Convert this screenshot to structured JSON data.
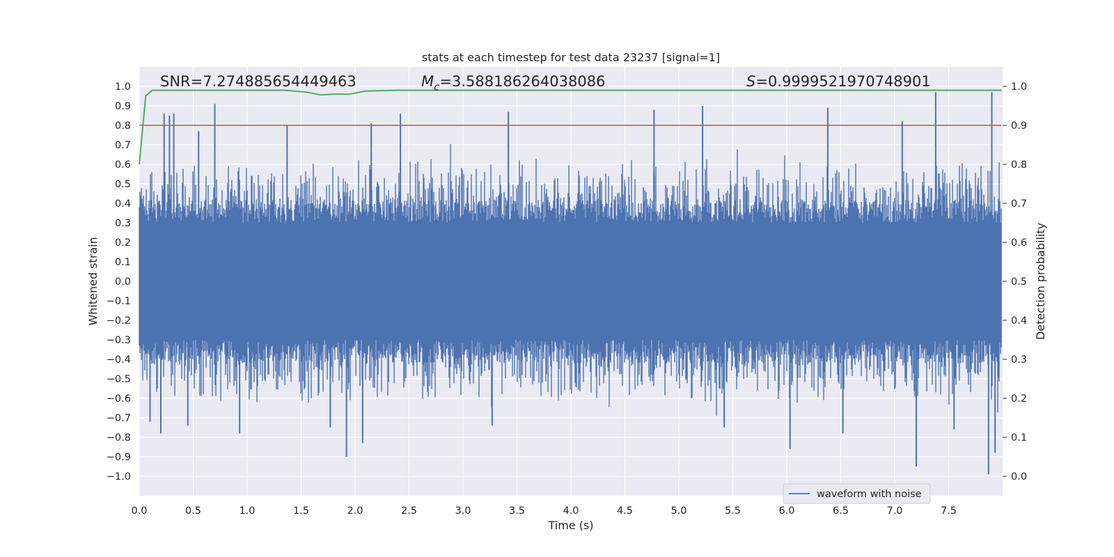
{
  "chart_data": {
    "type": "line",
    "title": "stats at each timestep for test data 23237 [signal=1]",
    "xlabel": "Time (s)",
    "ylabel": "Whitened strain",
    "y2label": "Detection probability",
    "xlim": [
      0.0,
      8.0
    ],
    "ylim": [
      -1.1,
      1.1
    ],
    "y2lim": [
      -0.05,
      1.05
    ],
    "xticks": [
      "0.0",
      "0.5",
      "1.0",
      "1.5",
      "2.0",
      "2.5",
      "3.0",
      "3.5",
      "4.0",
      "4.5",
      "5.0",
      "5.5",
      "6.0",
      "6.5",
      "7.0",
      "7.5"
    ],
    "xtick_values": [
      0.0,
      0.5,
      1.0,
      1.5,
      2.0,
      2.5,
      3.0,
      3.5,
      4.0,
      4.5,
      5.0,
      5.5,
      6.0,
      6.5,
      7.0,
      7.5
    ],
    "yticks": [
      "1.0",
      "0.9",
      "0.8",
      "0.7",
      "0.6",
      "0.5",
      "0.4",
      "0.3",
      "0.2",
      "0.1",
      "0.0",
      "−0.1",
      "−0.2",
      "−0.3",
      "−0.4",
      "−0.5",
      "−0.6",
      "−0.7",
      "−0.8",
      "−0.9",
      "−1.0"
    ],
    "ytick_values": [
      1.0,
      0.9,
      0.8,
      0.7,
      0.6,
      0.5,
      0.4,
      0.3,
      0.2,
      0.1,
      0.0,
      -0.1,
      -0.2,
      -0.3,
      -0.4,
      -0.5,
      -0.6,
      -0.7,
      -0.8,
      -0.9,
      -1.0
    ],
    "y2ticks": [
      "1.0",
      "0.9",
      "0.8",
      "0.7",
      "0.6",
      "0.5",
      "0.4",
      "0.3",
      "0.2",
      "0.1",
      "0.0"
    ],
    "y2tick_values": [
      1.0,
      0.9,
      0.8,
      0.7,
      0.6,
      0.5,
      0.4,
      0.3,
      0.2,
      0.1,
      0.0
    ],
    "annotations": {
      "snr": "SNR=7.274885654449463",
      "mc_symbol": "M",
      "mc_sub": "c",
      "mc_value": "=3.588186264038086",
      "s_symbol": "S",
      "s_value": "=0.9999521970748901"
    },
    "legend": {
      "label": "waveform with noise",
      "position": "lower-right"
    },
    "threshold": 0.9,
    "series": [
      {
        "name": "waveform with noise",
        "axis": "left",
        "color": "#4c72b0",
        "x_range": [
          0.0,
          7.99
        ],
        "envelope": 0.3,
        "spikes": [
          {
            "x": 0.23,
            "y": 0.86
          },
          {
            "x": 0.28,
            "y": 0.85
          },
          {
            "x": 0.32,
            "y": 0.86
          },
          {
            "x": 0.55,
            "y": 0.77
          },
          {
            "x": 0.7,
            "y": 0.91
          },
          {
            "x": 1.37,
            "y": 0.8
          },
          {
            "x": 2.15,
            "y": 0.81
          },
          {
            "x": 2.42,
            "y": 0.86
          },
          {
            "x": 3.42,
            "y": 0.87
          },
          {
            "x": 4.77,
            "y": 0.88
          },
          {
            "x": 5.22,
            "y": 0.9
          },
          {
            "x": 6.38,
            "y": 0.89
          },
          {
            "x": 7.07,
            "y": 0.82
          },
          {
            "x": 7.38,
            "y": 0.97
          },
          {
            "x": 7.9,
            "y": 0.97
          },
          {
            "x": 0.1,
            "y": -0.72
          },
          {
            "x": 0.2,
            "y": -0.78
          },
          {
            "x": 0.45,
            "y": -0.74
          },
          {
            "x": 0.93,
            "y": -0.78
          },
          {
            "x": 1.77,
            "y": -0.75
          },
          {
            "x": 1.92,
            "y": -0.9
          },
          {
            "x": 2.07,
            "y": -0.83
          },
          {
            "x": 3.27,
            "y": -0.74
          },
          {
            "x": 5.42,
            "y": -0.75
          },
          {
            "x": 6.03,
            "y": -0.86
          },
          {
            "x": 6.52,
            "y": -0.78
          },
          {
            "x": 7.2,
            "y": -0.95
          },
          {
            "x": 7.55,
            "y": -0.76
          },
          {
            "x": 7.87,
            "y": -0.99
          },
          {
            "x": 7.93,
            "y": -0.88
          }
        ]
      },
      {
        "name": "detection probability",
        "axis": "right",
        "color": "#55a868",
        "x": [
          0.0,
          0.06,
          0.12,
          0.3,
          0.6,
          1.0,
          1.35,
          1.55,
          1.68,
          1.8,
          1.95,
          2.1,
          2.4,
          3.0,
          4.0,
          5.0,
          6.0,
          7.0,
          7.99
        ],
        "values": [
          0.8,
          0.975,
          0.99,
          0.99,
          0.99,
          0.99,
          0.99,
          0.985,
          0.978,
          0.98,
          0.98,
          0.988,
          0.99,
          0.99,
          0.99,
          0.99,
          0.99,
          0.99,
          0.99
        ]
      },
      {
        "name": "threshold",
        "axis": "right",
        "color": "#c44e52",
        "x": [
          0.0,
          7.99
        ],
        "values": [
          0.9,
          0.9
        ]
      }
    ]
  }
}
